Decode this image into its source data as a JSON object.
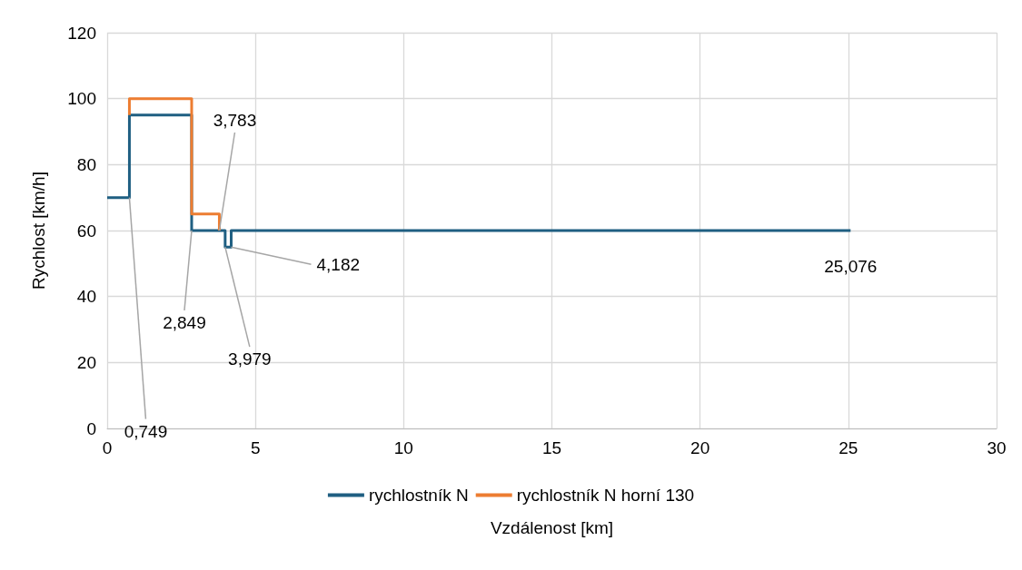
{
  "chart_data": {
    "type": "step",
    "xlabel": "Vzdálenost [km]",
    "ylabel": "Rychlost [km/h]",
    "series": [
      {
        "name": "rychlostník N",
        "color": "#1f5f82",
        "x": [
          0,
          0.749,
          2.849,
          3.979,
          4.182,
          25.076
        ],
        "values": [
          70,
          95,
          60,
          55,
          60,
          60
        ]
      },
      {
        "name": "rychlostník N horní 130",
        "color": "#ed7d31",
        "x": [
          0.749,
          0.749,
          2.849,
          3.783
        ],
        "values": [
          95,
          100,
          65,
          60
        ]
      }
    ],
    "xlim": [
      0,
      30
    ],
    "xticks": [
      0,
      5,
      10,
      15,
      20,
      25,
      30
    ],
    "ylim": [
      0,
      120
    ],
    "yticks": [
      0,
      20,
      40,
      60,
      80,
      100,
      120
    ],
    "annotations": [
      {
        "text": "0,749",
        "x": 0.749,
        "y": 70
      },
      {
        "text": "2,849",
        "x": 2.849,
        "y": 60
      },
      {
        "text": "3,783",
        "x": 3.783,
        "y": 60
      },
      {
        "text": "3,979",
        "x": 3.979,
        "y": 55
      },
      {
        "text": "4,182",
        "x": 4.182,
        "y": 55
      },
      {
        "text": "25,076",
        "x": 25.076,
        "y": 60
      }
    ],
    "grid": true,
    "legend": "bottom",
    "marker": "none",
    "line_style": "solid"
  }
}
